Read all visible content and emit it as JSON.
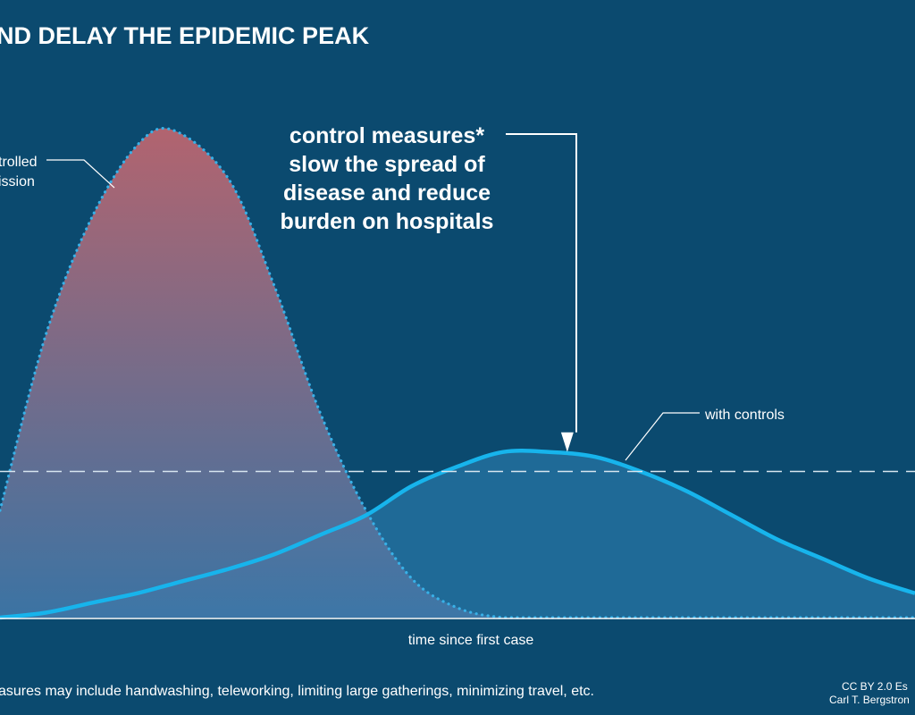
{
  "chart_data": {
    "type": "area",
    "title": "ND DELAY THE EPIDEMIC PEAK",
    "xlabel": "time since first case",
    "ylabel": "",
    "xlim": [
      0,
      100
    ],
    "ylim": [
      0,
      100
    ],
    "x": [
      0,
      5,
      10,
      15,
      19,
      25,
      30,
      35,
      40,
      45,
      50,
      55,
      60,
      65,
      70,
      75,
      80,
      85,
      90,
      95,
      100
    ],
    "series": [
      {
        "name": "trolled\nission",
        "style": "dotted",
        "fill": "gradient red-to-blue",
        "values": [
          22,
          58,
          82,
          97,
          100,
          90,
          68,
          42,
          22,
          8,
          2,
          0,
          0,
          0,
          0,
          0,
          0,
          0,
          0,
          0,
          0
        ]
      },
      {
        "name": "with controls",
        "style": "solid",
        "values": [
          0,
          1,
          3,
          5,
          7,
          10,
          13,
          17,
          21,
          27,
          31,
          34,
          34,
          33,
          30,
          26,
          21,
          16,
          12,
          8,
          5
        ]
      }
    ],
    "threshold_line": {
      "y": 30,
      "style": "dashed"
    },
    "annotations": [
      {
        "lines": [
          "control measures*",
          "slow the spread of",
          "disease and reduce",
          "burden on hospitals"
        ],
        "x": 62,
        "y": 34
      },
      {
        "lines": [
          "trolled",
          "ission"
        ]
      },
      {
        "lines": [
          "with controls"
        ]
      }
    ],
    "footnote": "asures may include handwashing, teleworking, limiting large gatherings, minimizing travel, etc.",
    "credit": [
      "CC BY 2.0  Es",
      "Carl T. Bergstron"
    ],
    "colors": {
      "background": "#0b4a6f",
      "uncontrolled_top": "#c0666f",
      "uncontrolled_bottom": "#3f77a8",
      "uncontrolled_line": "#38b1e8",
      "controlled_line": "#17b4ec",
      "controlled_fill": "#23709f",
      "threshold": "#d8e6ef",
      "axis": "#ffffff"
    }
  }
}
